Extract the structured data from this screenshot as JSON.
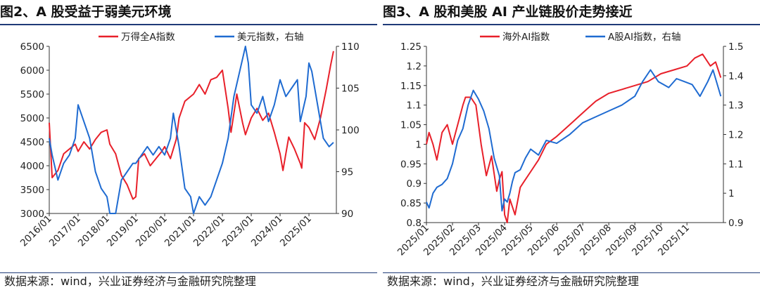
{
  "chart_data": [
    {
      "type": "line",
      "title": "图2、A 股受益于弱美元环境",
      "source": "数据来源：wind，兴业证券经济与金融研究院整理",
      "x_ticks": [
        "2016/01",
        "2017/01",
        "2018/01",
        "2019/01",
        "2020/01",
        "2021/01",
        "2022/01",
        "2023/01",
        "2024/01",
        "2025/01"
      ],
      "y_left": {
        "ticks": [
          "3000",
          "3500",
          "4000",
          "4500",
          "5000",
          "5500",
          "6000",
          "6500"
        ],
        "lim": [
          3000,
          6500
        ]
      },
      "y_right": {
        "ticks": [
          "90",
          "95",
          "100",
          "105",
          "110"
        ],
        "lim": [
          90,
          110
        ]
      },
      "legend_position": "top-center",
      "series": [
        {
          "name": "万得全A指数",
          "axis": "left",
          "color": "#e8202a",
          "x": [
            2016.0,
            2016.1,
            2016.3,
            2016.5,
            2016.7,
            2016.9,
            2017.0,
            2017.2,
            2017.4,
            2017.6,
            2017.8,
            2018.0,
            2018.1,
            2018.3,
            2018.5,
            2018.7,
            2018.9,
            2019.0,
            2019.1,
            2019.3,
            2019.5,
            2019.7,
            2019.9,
            2020.0,
            2020.2,
            2020.4,
            2020.5,
            2020.7,
            2020.9,
            2021.0,
            2021.2,
            2021.4,
            2021.6,
            2021.8,
            2022.0,
            2022.2,
            2022.3,
            2022.5,
            2022.7,
            2022.8,
            2023.0,
            2023.2,
            2023.4,
            2023.6,
            2023.8,
            2024.0,
            2024.1,
            2024.3,
            2024.5,
            2024.7,
            2024.75,
            2024.85,
            2025.0,
            2025.2,
            2025.4,
            2025.6,
            2025.75,
            2025.85
          ],
          "y": [
            4900,
            3750,
            3900,
            4250,
            4350,
            4450,
            4300,
            4500,
            4350,
            4550,
            4700,
            4750,
            4450,
            4250,
            3800,
            3600,
            3300,
            3350,
            4150,
            4250,
            4000,
            4150,
            4300,
            4400,
            4150,
            4550,
            5000,
            5350,
            5450,
            5500,
            5700,
            5500,
            5800,
            5850,
            6000,
            5200,
            4700,
            5500,
            4900,
            4650,
            5000,
            5200,
            4950,
            5100,
            4700,
            4250,
            3900,
            4600,
            4350,
            4050,
            3950,
            4900,
            4800,
            4550,
            5000,
            5600,
            6100,
            6400
          ]
        },
        {
          "name": "美元指数，右轴",
          "axis": "right",
          "color": "#1f6bd1",
          "x": [
            2016.0,
            2016.1,
            2016.3,
            2016.5,
            2016.7,
            2016.9,
            2017.0,
            2017.2,
            2017.4,
            2017.6,
            2017.8,
            2018.0,
            2018.1,
            2018.3,
            2018.5,
            2018.7,
            2018.9,
            2019.0,
            2019.2,
            2019.4,
            2019.6,
            2019.8,
            2020.0,
            2020.2,
            2020.3,
            2020.5,
            2020.7,
            2020.9,
            2021.0,
            2021.2,
            2021.4,
            2021.6,
            2021.8,
            2022.0,
            2022.2,
            2022.4,
            2022.6,
            2022.8,
            2022.9,
            2023.0,
            2023.2,
            2023.4,
            2023.6,
            2023.8,
            2024.0,
            2024.2,
            2024.4,
            2024.6,
            2024.7,
            2024.9,
            2025.0,
            2025.1,
            2025.3,
            2025.5,
            2025.7,
            2025.85
          ],
          "y": [
            99,
            97,
            94,
            96,
            97,
            99,
            103,
            101,
            99,
            95,
            93,
            92,
            90,
            90,
            94,
            95,
            96,
            96,
            97,
            98,
            97,
            98,
            97,
            99,
            102,
            98,
            93,
            92,
            90,
            92,
            91,
            92,
            94,
            96,
            99,
            104,
            107,
            110,
            108,
            103,
            102,
            104,
            101,
            103,
            106,
            104,
            105,
            106,
            101,
            104,
            108,
            107,
            103,
            99,
            98,
            98.5
          ]
        }
      ]
    },
    {
      "type": "line",
      "title": "图3、A 股和美股 AI 产业链股价走势接近",
      "source": "数据来源：wind，兴业证券经济与金融研究院整理",
      "x_ticks": [
        "2025/01",
        "2025/02",
        "2025/03",
        "2025/04",
        "2025/05",
        "2025/06",
        "2025/07",
        "2025/08",
        "2025/09",
        "2025/10",
        "2025/11"
      ],
      "y_left": {
        "ticks": [
          "0.8",
          "0.85",
          "0.9",
          "0.95",
          "1",
          "1.05",
          "1.1",
          "1.15",
          "1.2",
          "1.25"
        ],
        "lim": [
          0.8,
          1.25
        ]
      },
      "y_right": {
        "ticks": [
          "0.9",
          "1",
          "1.1",
          "1.2",
          "1.3",
          "1.4",
          "1.5"
        ],
        "lim": [
          0.9,
          1.5
        ]
      },
      "legend_position": "top-center",
      "series": [
        {
          "name": "海外AI指数",
          "axis": "left",
          "color": "#e8202a",
          "x": [
            0,
            0.1,
            0.25,
            0.4,
            0.6,
            0.8,
            1.0,
            1.2,
            1.4,
            1.5,
            1.7,
            1.9,
            2.1,
            2.3,
            2.5,
            2.7,
            2.8,
            2.9,
            3.0,
            3.1,
            3.2,
            3.3,
            3.4,
            3.6,
            3.8,
            4.0,
            4.3,
            4.6,
            5.0,
            5.5,
            6.0,
            6.5,
            7.0,
            7.5,
            8.0,
            8.5,
            9.0,
            9.5,
            10.0,
            10.3,
            10.6,
            10.9,
            11.1,
            11.3
          ],
          "y": [
            1.0,
            1.03,
            1.0,
            0.96,
            1.03,
            1.05,
            1.0,
            1.05,
            1.1,
            1.12,
            1.12,
            1.1,
            1.0,
            0.92,
            0.97,
            0.88,
            0.91,
            0.93,
            0.82,
            0.78,
            0.86,
            0.84,
            0.82,
            0.89,
            0.91,
            0.93,
            0.96,
            1.0,
            1.02,
            1.05,
            1.08,
            1.11,
            1.13,
            1.14,
            1.15,
            1.16,
            1.18,
            1.19,
            1.2,
            1.22,
            1.23,
            1.2,
            1.21,
            1.17
          ]
        },
        {
          "name": "A股AI指数，右轴",
          "axis": "right",
          "color": "#1f6bd1",
          "x": [
            0,
            0.1,
            0.25,
            0.4,
            0.6,
            0.8,
            1.0,
            1.2,
            1.4,
            1.6,
            1.8,
            2.0,
            2.2,
            2.4,
            2.6,
            2.8,
            2.9,
            3.0,
            3.1,
            3.2,
            3.3,
            3.4,
            3.6,
            3.8,
            4.0,
            4.3,
            4.6,
            5.0,
            5.5,
            6.0,
            6.5,
            7.0,
            7.5,
            8.0,
            8.3,
            8.6,
            8.9,
            9.1,
            9.3,
            9.6,
            9.9,
            10.2,
            10.5,
            10.8,
            11.0,
            11.2,
            11.3
          ],
          "y": [
            0.97,
            0.95,
            1.0,
            1.02,
            1.03,
            1.05,
            1.1,
            1.18,
            1.22,
            1.3,
            1.35,
            1.32,
            1.28,
            1.22,
            1.12,
            1.06,
            0.94,
            0.98,
            0.97,
            1.0,
            1.04,
            1.07,
            1.08,
            1.12,
            1.15,
            1.13,
            1.18,
            1.17,
            1.2,
            1.24,
            1.26,
            1.28,
            1.3,
            1.33,
            1.38,
            1.42,
            1.38,
            1.37,
            1.36,
            1.39,
            1.38,
            1.37,
            1.33,
            1.38,
            1.42,
            1.36,
            1.33
          ]
        }
      ]
    }
  ]
}
